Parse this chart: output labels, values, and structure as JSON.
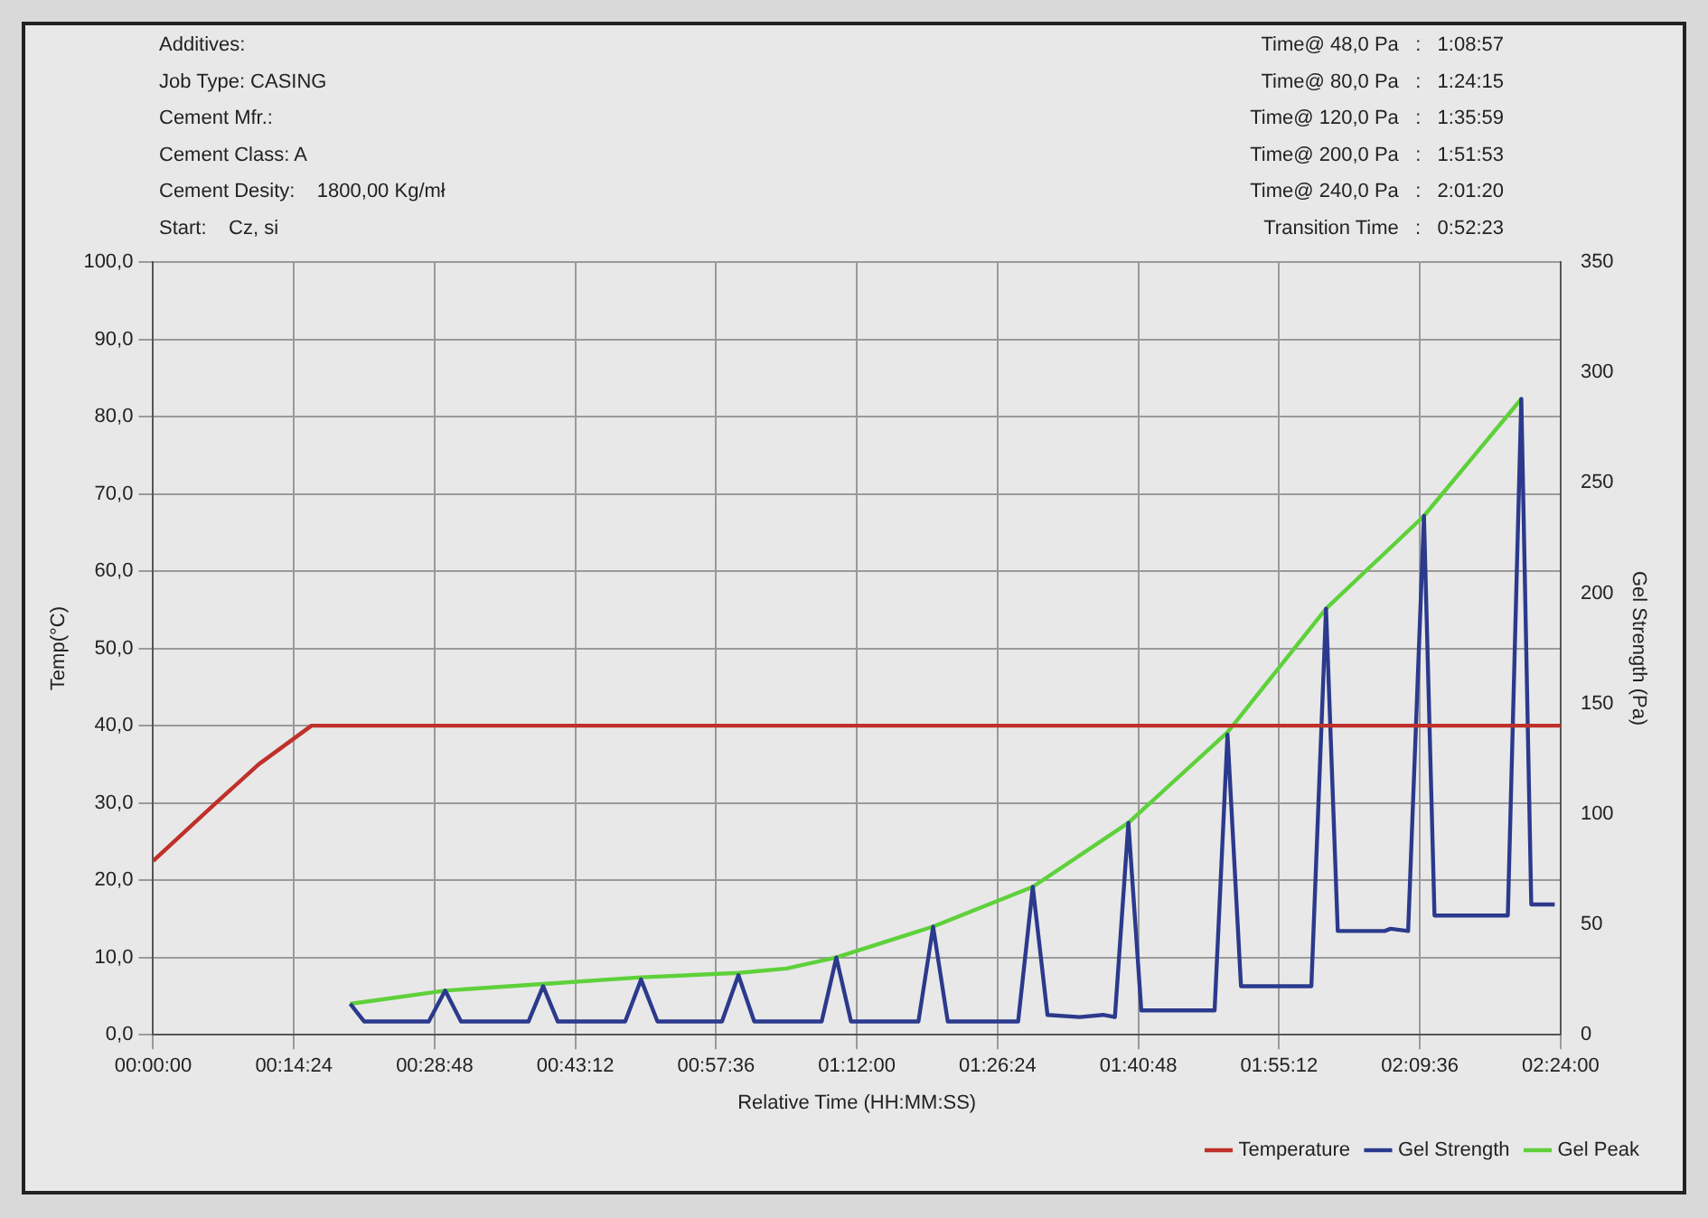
{
  "chart_data": {
    "type": "line",
    "xlabel": "Relative Time (HH:MM:SS)",
    "ylabel": "Temp(°C)",
    "y2label": "Gel Strength (Pa)",
    "annotations": [
      "Additives:",
      "Job Type: CASING",
      "Cement Mfr.:",
      "Cement Class: A",
      "Cement Desity:    1800,00 Kg/mł",
      "Start:    Cz, si",
      "Time@ 48,0 Pa   :   1:08:57",
      "Time@ 80,0 Pa   :   1:24:15",
      "Time@ 120,0 Pa   :   1:35:59",
      "Time@ 200,0 Pa   :   1:51:53",
      "Time@ 240,0 Pa   :   2:01:20",
      "Transition Time   :   0:52:23"
    ],
    "xlim": [
      0,
      2.4
    ],
    "xticks": [
      {
        "value": 0,
        "label": "00:00:00"
      },
      {
        "value": 0.24,
        "label": "00:14:24"
      },
      {
        "value": 0.48,
        "label": "00:28:48"
      },
      {
        "value": 0.72,
        "label": "00:43:12"
      },
      {
        "value": 0.96,
        "label": "00:57:36"
      },
      {
        "value": 1.2,
        "label": "01:12:00"
      },
      {
        "value": 1.44,
        "label": "01:26:24"
      },
      {
        "value": 1.68,
        "label": "01:40:48"
      },
      {
        "value": 1.92,
        "label": "01:55:12"
      },
      {
        "value": 2.16,
        "label": "02:09:36"
      },
      {
        "value": 2.4,
        "label": "02:24:00"
      }
    ],
    "ylim": [
      0,
      100
    ],
    "yticks": [
      {
        "value": 0,
        "label": "0,0"
      },
      {
        "value": 10,
        "label": "10,0"
      },
      {
        "value": 20,
        "label": "20,0"
      },
      {
        "value": 30,
        "label": "30,0"
      },
      {
        "value": 40,
        "label": "40,0"
      },
      {
        "value": 50,
        "label": "50,0"
      },
      {
        "value": 60,
        "label": "60,0"
      },
      {
        "value": 70,
        "label": "70,0"
      },
      {
        "value": 80,
        "label": "80,0"
      },
      {
        "value": 90,
        "label": "90,0"
      },
      {
        "value": 100,
        "label": "100,0"
      }
    ],
    "y2lim": [
      0,
      350
    ],
    "y2ticks": [
      0,
      50,
      100,
      150,
      200,
      250,
      300,
      350
    ],
    "grid": true,
    "legend": "bottom right",
    "marker": "none",
    "line_style": "solid",
    "series": [
      {
        "name": "Temperature",
        "color": "#c0302a",
        "x": [
          0,
          0.05,
          0.1,
          0.18,
          0.27,
          0.29,
          2.4
        ],
        "values": [
          22.5,
          26,
          29.5,
          35,
          40,
          40,
          40
        ]
      },
      {
        "name": "Gel Strength",
        "color": "#2b3a8c",
        "axis": "y2",
        "x": [
          0.336,
          0.36,
          0.47,
          0.498,
          0.525,
          0.64,
          0.665,
          0.69,
          0.805,
          0.832,
          0.86,
          0.97,
          0.998,
          1.025,
          1.14,
          1.165,
          1.19,
          1.305,
          1.33,
          1.355,
          1.475,
          1.5,
          1.525,
          1.58,
          1.62,
          1.64,
          1.663,
          1.685,
          1.81,
          1.832,
          1.855,
          1.975,
          2.0,
          2.02,
          2.1,
          2.11,
          2.14,
          2.167,
          2.185,
          2.31,
          2.333,
          2.35,
          2.39
        ],
        "values": [
          14,
          6,
          6,
          20,
          6,
          6,
          22,
          6,
          6,
          25,
          6,
          6,
          27,
          6,
          6,
          35,
          6,
          6,
          49,
          6,
          6,
          67,
          9,
          8,
          9,
          8,
          96,
          11,
          11,
          136,
          22,
          22,
          193,
          47,
          47,
          48,
          47,
          235,
          54,
          54,
          288,
          59,
          59
        ]
      },
      {
        "name": "Gel Peak",
        "color": "#5ed13a",
        "axis": "y2",
        "x": [
          0.336,
          0.498,
          0.665,
          0.832,
          0.998,
          1.08,
          1.165,
          1.33,
          1.5,
          1.663,
          1.832,
          2.0,
          2.167,
          2.333
        ],
        "values": [
          14,
          20,
          23,
          26,
          28,
          30,
          35,
          49,
          67,
          96,
          137,
          193,
          235,
          288
        ]
      }
    ]
  }
}
